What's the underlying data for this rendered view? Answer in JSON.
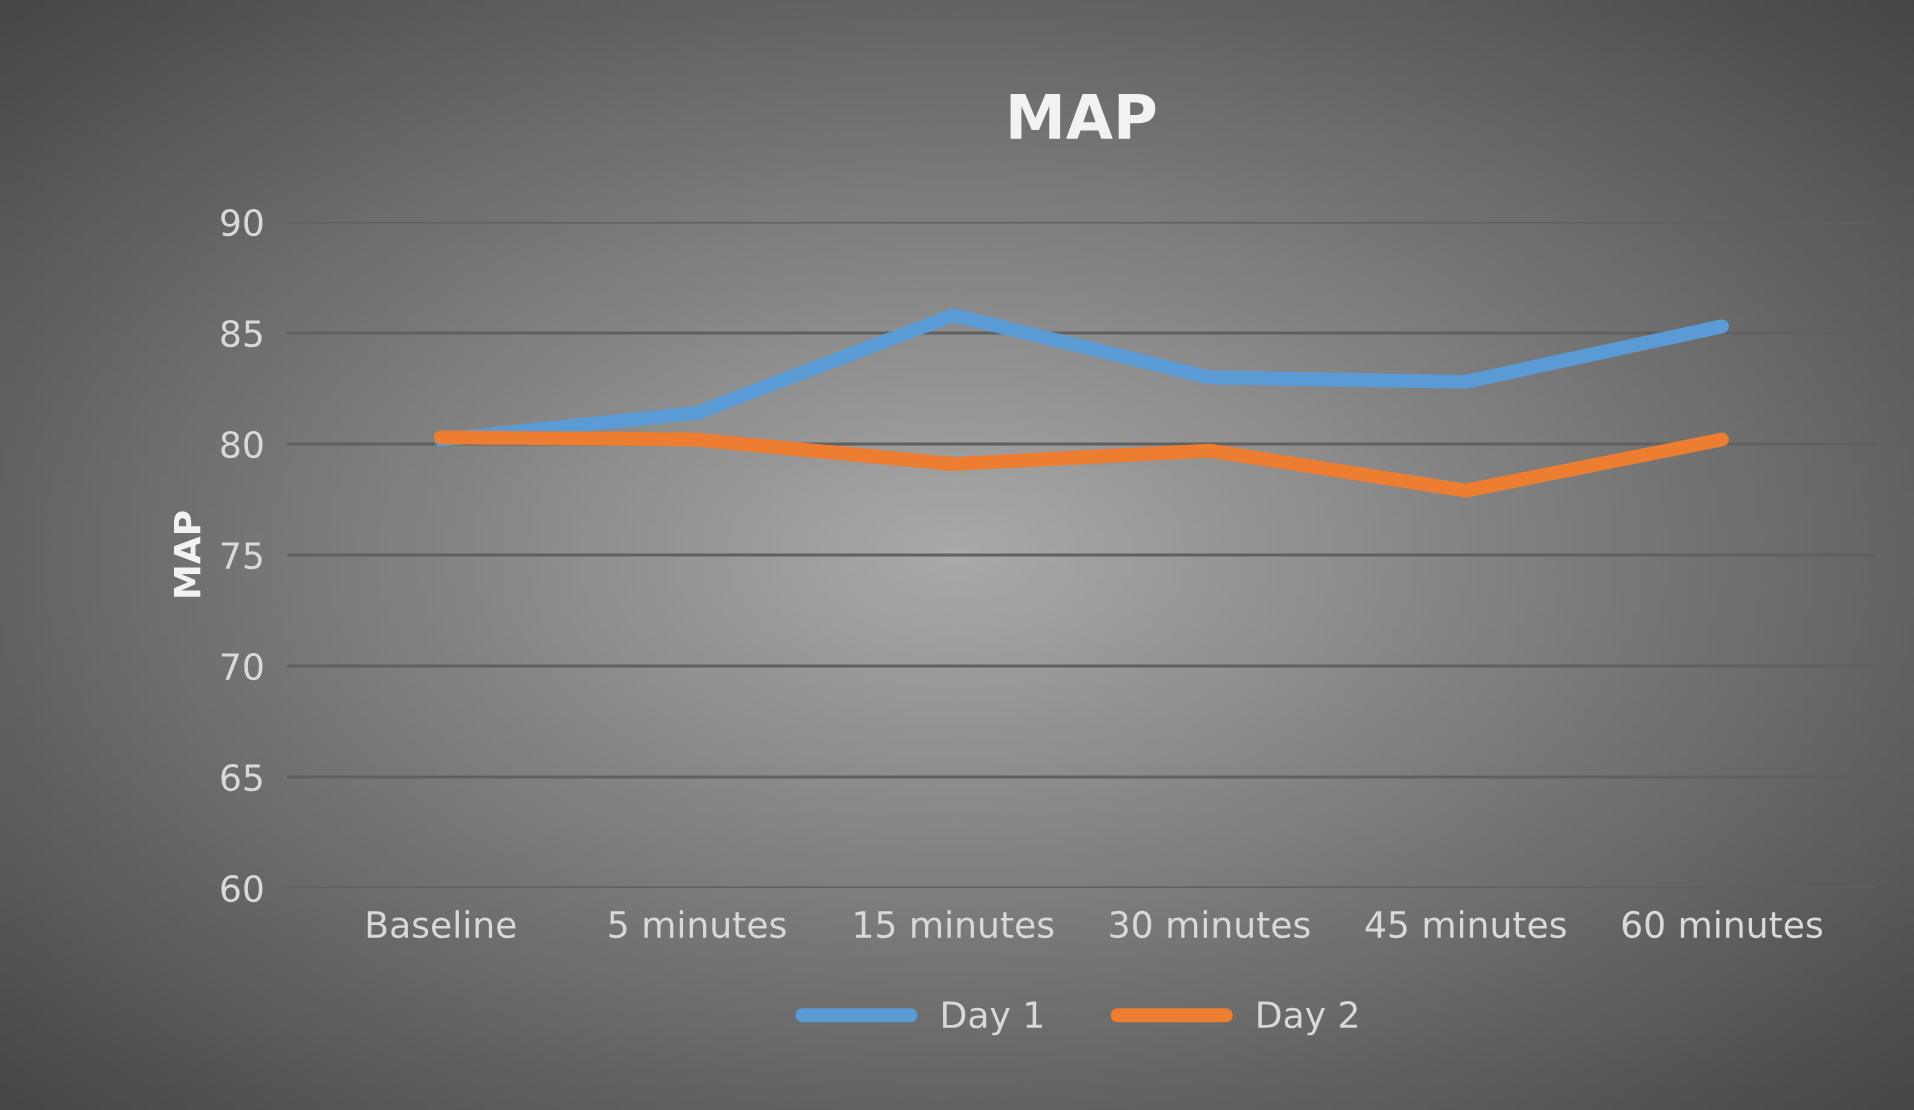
{
  "chart_data": {
    "type": "line",
    "title": "MAP",
    "ylabel": "MAP",
    "categories": [
      "Baseline",
      "5 minutes",
      "15 minutes",
      "30 minutes",
      "45 minutes",
      "60 minutes"
    ],
    "series": [
      {
        "name": "Day 1",
        "color": "#5b9bd5",
        "values": [
          80.2,
          81.4,
          85.8,
          83.0,
          82.8,
          85.3
        ]
      },
      {
        "name": "Day 2",
        "color": "#ed7d31",
        "values": [
          80.3,
          80.2,
          79.1,
          79.7,
          77.9,
          80.2
        ]
      }
    ],
    "ylim": [
      60,
      90
    ],
    "yticks": [
      60,
      65,
      70,
      75,
      80,
      85,
      90
    ],
    "grid": "y",
    "legend": "bottom",
    "marker": "none",
    "line_style": "solid"
  }
}
